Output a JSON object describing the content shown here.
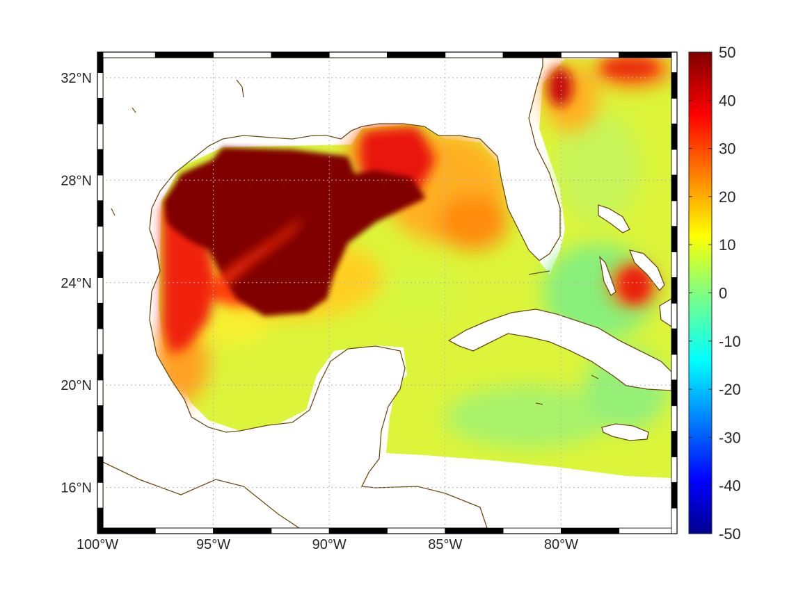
{
  "map": {
    "lon_range": [
      -100,
      -75
    ],
    "lat_range": [
      14.2,
      33
    ],
    "lon_ticks": [
      {
        "value": -100,
        "label": "100°W"
      },
      {
        "value": -95,
        "label": "95°W"
      },
      {
        "value": -90,
        "label": "90°W"
      },
      {
        "value": -85,
        "label": "85°W"
      },
      {
        "value": -80,
        "label": "80°W"
      }
    ],
    "lat_ticks": [
      {
        "value": 32,
        "label": "32°N"
      },
      {
        "value": 28,
        "label": "28°N"
      },
      {
        "value": 24,
        "label": "24°N"
      },
      {
        "value": 20,
        "label": "20°N"
      },
      {
        "value": 16,
        "label": "16°N"
      }
    ],
    "grid": true,
    "coastline_color": "#6b4a12",
    "frame": "black-white-checker"
  },
  "colorbar": {
    "min": -50,
    "max": 50,
    "colormap": "jet",
    "ticks": [
      {
        "value": 50,
        "label": "50"
      },
      {
        "value": 40,
        "label": "40"
      },
      {
        "value": 30,
        "label": "30"
      },
      {
        "value": 20,
        "label": "20"
      },
      {
        "value": 10,
        "label": "10"
      },
      {
        "value": 0,
        "label": "0"
      },
      {
        "value": -10,
        "label": "-10"
      },
      {
        "value": -20,
        "label": "-20"
      },
      {
        "value": -30,
        "label": "-30"
      },
      {
        "value": -40,
        "label": "-40"
      },
      {
        "value": -50,
        "label": "-50"
      }
    ]
  }
}
